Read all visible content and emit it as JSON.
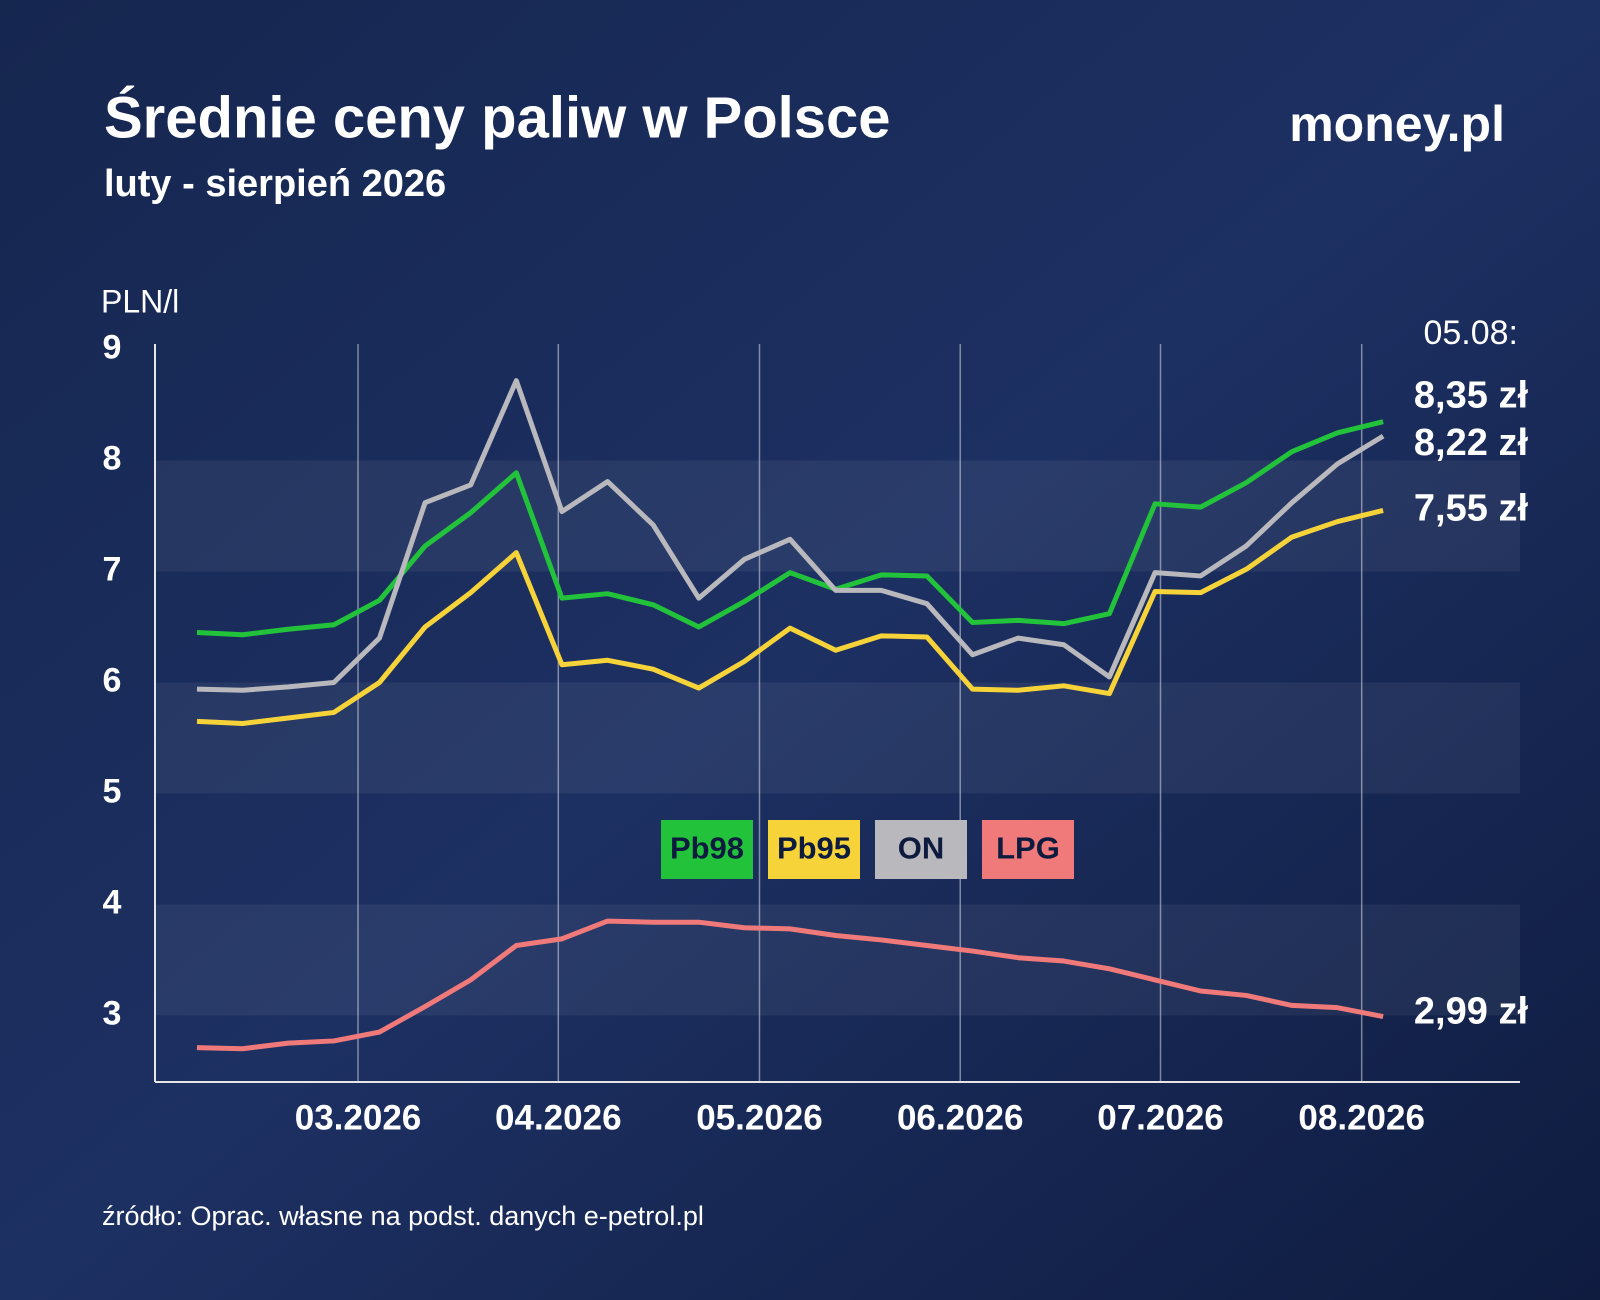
{
  "chart_data": {
    "type": "line",
    "title": "Średnie ceny paliw w Polsce",
    "subtitle": "luty - sierpień 2026",
    "brand": "money.pl",
    "y_label": "PLN/l",
    "annotation": "05.08:",
    "source": "źródło: Oprac. własne na podst. danych e-petrol.pl",
    "categories": [
      null,
      null,
      null,
      null,
      null,
      null,
      null,
      null,
      null,
      null,
      null,
      null,
      null,
      null,
      null,
      null,
      null,
      null,
      null,
      null,
      null,
      null,
      null,
      null,
      null,
      null,
      null
    ],
    "xlim": [
      -0.92,
      29.0
    ],
    "xticks": [
      {
        "value": 3.53,
        "label": "03.2026"
      },
      {
        "value": 7.92,
        "label": "04.2026"
      },
      {
        "value": 12.33,
        "label": "05.2026"
      },
      {
        "value": 16.73,
        "label": "06.2026"
      },
      {
        "value": 21.12,
        "label": "07.2026"
      },
      {
        "value": 25.53,
        "label": "08.2026"
      }
    ],
    "ylim": [
      2.4,
      9.05
    ],
    "yticks": [
      3,
      4,
      5,
      6,
      7,
      8,
      9
    ],
    "grid": true,
    "legend": "center",
    "series": [
      {
        "name": "Pb98",
        "color": "#22c33a",
        "values": [
          6.45,
          6.43,
          6.48,
          6.52,
          6.74,
          7.23,
          7.53,
          7.89,
          6.76,
          6.8,
          6.7,
          6.5,
          6.73,
          6.99,
          6.84,
          6.97,
          6.96,
          6.54,
          6.56,
          6.53,
          6.62,
          7.61,
          7.58,
          7.8,
          8.08,
          8.25,
          8.35
        ],
        "value_labels": [
          null,
          null,
          null,
          null,
          null,
          null,
          null,
          null,
          null,
          null,
          null,
          null,
          null,
          null,
          null,
          null,
          null,
          null,
          null,
          null,
          null,
          null,
          null,
          null,
          null,
          null,
          "8,35 zł"
        ]
      },
      {
        "name": "Pb95",
        "color": "#f7d33a",
        "values": [
          5.65,
          5.63,
          5.68,
          5.73,
          6.0,
          6.5,
          6.81,
          7.17,
          6.16,
          6.2,
          6.12,
          5.95,
          6.19,
          6.49,
          6.29,
          6.42,
          6.41,
          5.94,
          5.93,
          5.97,
          5.9,
          6.82,
          6.81,
          7.02,
          7.31,
          7.45,
          7.55
        ],
        "value_labels": [
          null,
          null,
          null,
          null,
          null,
          null,
          null,
          null,
          null,
          null,
          null,
          null,
          null,
          null,
          null,
          null,
          null,
          null,
          null,
          null,
          null,
          null,
          null,
          null,
          null,
          null,
          "7,55 zł"
        ]
      },
      {
        "name": "ON",
        "color": "#b8b8bd",
        "values": [
          5.94,
          5.93,
          5.96,
          6.0,
          6.4,
          7.62,
          7.78,
          8.72,
          7.54,
          7.81,
          7.42,
          6.76,
          7.11,
          7.29,
          6.83,
          6.83,
          6.71,
          6.25,
          6.4,
          6.34,
          6.05,
          6.99,
          6.96,
          7.23,
          7.62,
          7.97,
          8.22
        ],
        "value_labels": [
          null,
          null,
          null,
          null,
          null,
          null,
          null,
          null,
          null,
          null,
          null,
          null,
          null,
          null,
          null,
          null,
          null,
          null,
          null,
          null,
          null,
          null,
          null,
          null,
          null,
          null,
          "8,22 zł"
        ]
      },
      {
        "name": "LPG",
        "color": "#f07a7a",
        "values": [
          2.71,
          2.7,
          2.75,
          2.77,
          2.85,
          3.08,
          3.32,
          3.63,
          3.69,
          3.85,
          3.84,
          3.84,
          3.79,
          3.78,
          3.72,
          3.68,
          3.63,
          3.58,
          3.52,
          3.49,
          3.42,
          3.32,
          3.22,
          3.18,
          3.09,
          3.07,
          2.99
        ],
        "value_labels": [
          null,
          null,
          null,
          null,
          null,
          null,
          null,
          null,
          null,
          null,
          null,
          null,
          null,
          null,
          null,
          null,
          null,
          null,
          null,
          null,
          null,
          null,
          null,
          null,
          null,
          null,
          "2,99 zł"
        ]
      }
    ]
  }
}
